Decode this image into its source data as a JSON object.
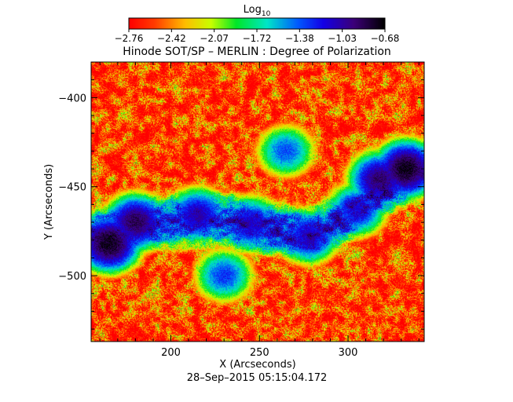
{
  "chart_data": {
    "type": "heatmap",
    "title": "Hinode SOT/SP – MERLIN : Degree of Polarization",
    "xlabel": "X (Arcseconds)",
    "ylabel": "Y (Arcseconds)",
    "xlim": [
      155,
      343
    ],
    "ylim": [
      -537,
      -380
    ],
    "x_ticks": [
      200,
      250,
      300
    ],
    "y_ticks": [
      -400,
      -450,
      -500
    ],
    "colorbar": {
      "label_base": "Log",
      "label_sub": "10",
      "range": [
        -2.76,
        -0.68
      ],
      "ticks": [
        "−2.76",
        "−2.42",
        "−2.07",
        "−1.72",
        "−1.38",
        "−1.03",
        "−0.68"
      ],
      "placement": "top"
    },
    "timestamp": "28–Sep–2015 05:15:04.172",
    "features": [
      {
        "x": 165,
        "y": -482,
        "value": -0.72
      },
      {
        "x": 180,
        "y": -470,
        "value": -0.85
      },
      {
        "x": 333,
        "y": -440,
        "value": -0.72
      },
      {
        "x": 318,
        "y": -446,
        "value": -0.9
      },
      {
        "x": 215,
        "y": -466,
        "value": -1.05
      },
      {
        "x": 245,
        "y": -471,
        "value": -1.1
      },
      {
        "x": 278,
        "y": -478,
        "value": -1.1
      },
      {
        "x": 305,
        "y": -463,
        "value": -1.15
      },
      {
        "x": 230,
        "y": -500,
        "value": -1.3
      },
      {
        "x": 265,
        "y": -430,
        "value": -1.35
      }
    ]
  }
}
